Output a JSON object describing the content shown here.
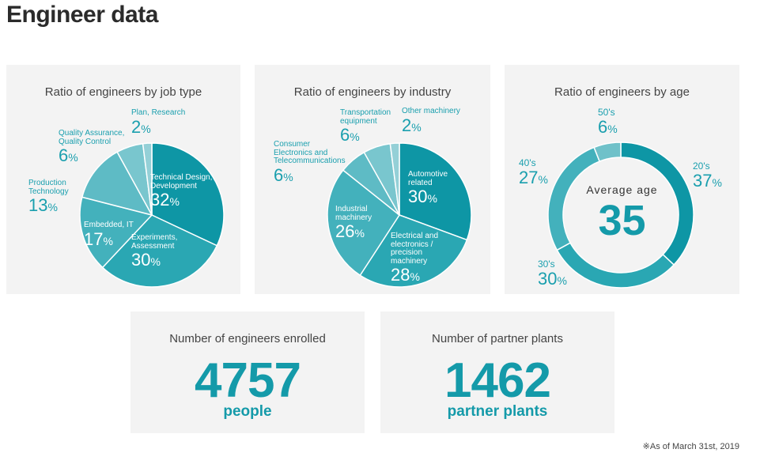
{
  "page": {
    "title": "Engineer data",
    "footnote": "※As of March 31st, 2019"
  },
  "chart_data": [
    {
      "type": "pie",
      "title": "Ratio of engineers by job type",
      "unit": "%",
      "slices": [
        {
          "name": "Technical Design, Development",
          "value": 32,
          "color": "#0e96a5"
        },
        {
          "name": "Experiments, Assessment",
          "value": 30,
          "color": "#2aa7b3"
        },
        {
          "name": "Embedded, IT",
          "value": 17,
          "color": "#43b1bc"
        },
        {
          "name": "Production Technology",
          "value": 13,
          "color": "#5ebbc5"
        },
        {
          "name": "Quality Assurance, Quality Control",
          "value": 6,
          "color": "#79c6ce"
        },
        {
          "name": "Plan, Research",
          "value": 2,
          "color": "#94d0d7"
        }
      ]
    },
    {
      "type": "pie",
      "title": "Ratio of engineers by industry",
      "unit": "%",
      "slices": [
        {
          "name": "Automotive related",
          "value": 30,
          "color": "#0e96a5"
        },
        {
          "name": "Electrical and electronics / precision machinery",
          "value": 28,
          "color": "#2aa7b3"
        },
        {
          "name": "Industrial machinery",
          "value": 26,
          "color": "#43b1bc"
        },
        {
          "name": "Consumer Electronics and Telecommunications",
          "value": 6,
          "color": "#5ebbc5"
        },
        {
          "name": "Transportation equipment",
          "value": 6,
          "color": "#79c6ce"
        },
        {
          "name": "Other machinery",
          "value": 2,
          "color": "#94d0d7"
        }
      ]
    },
    {
      "type": "pie",
      "title": "Ratio of engineers by age",
      "unit": "%",
      "center_label": "Average age",
      "center_value": 35,
      "slices": [
        {
          "name": "20's",
          "value": 37,
          "color": "#0e96a5"
        },
        {
          "name": "30's",
          "value": 30,
          "color": "#2aa7b3"
        },
        {
          "name": "40's",
          "value": 27,
          "color": "#43b1bc"
        },
        {
          "name": "50's",
          "value": 6,
          "color": "#6fc1c9"
        }
      ]
    }
  ],
  "stats": [
    {
      "title": "Number of engineers enrolled",
      "value": "4757",
      "unit": "people"
    },
    {
      "title": "Number of partner plants",
      "value": "1462",
      "unit": "partner plants"
    }
  ]
}
